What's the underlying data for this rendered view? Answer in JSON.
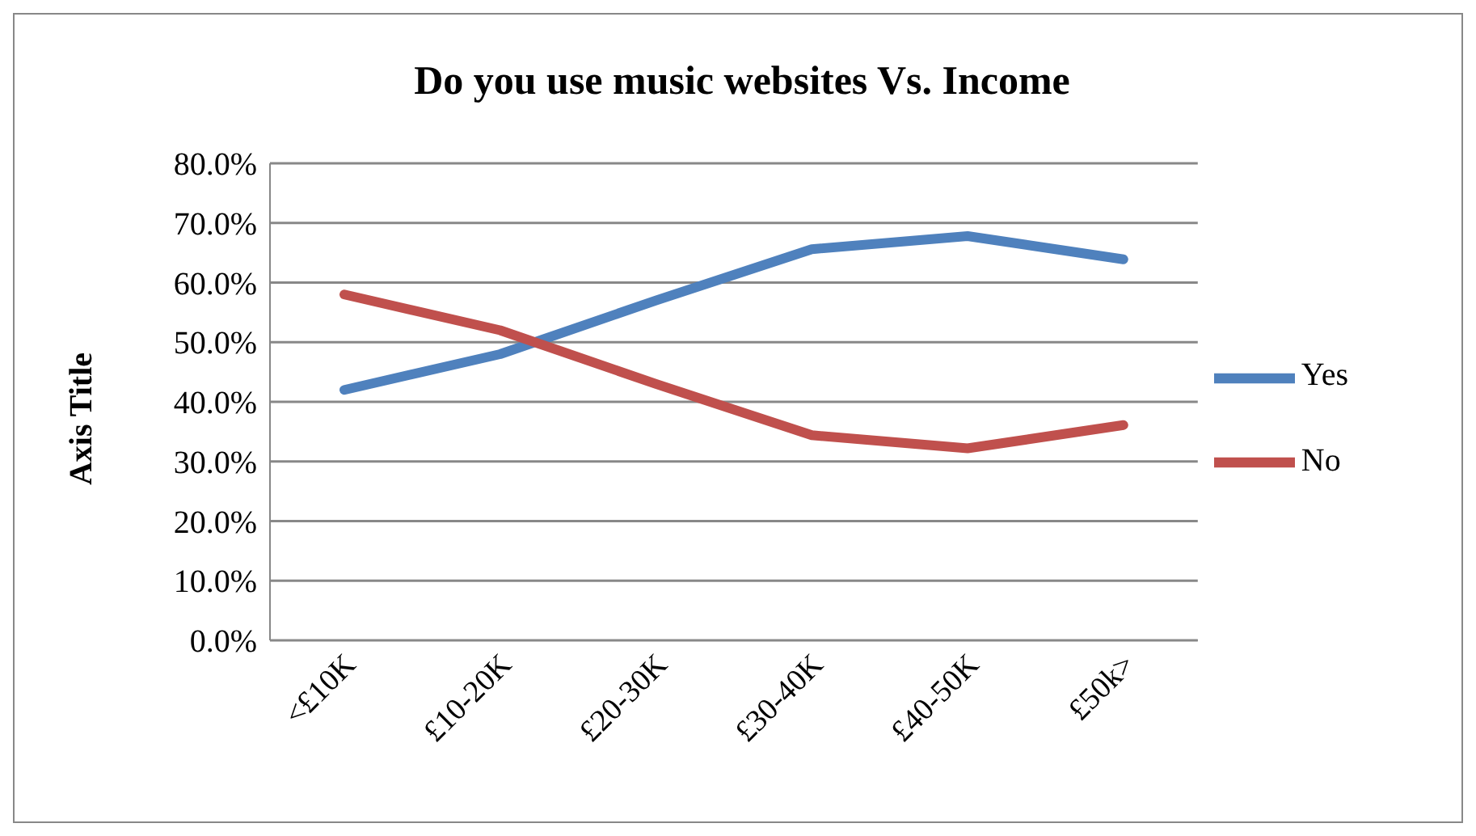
{
  "chart_data": {
    "type": "line",
    "title": "Do you use music websites Vs. Income",
    "ylabel": "Axis Title",
    "categories": [
      "<£10K",
      "£10-20K",
      "£20-30K",
      "£30-40K",
      "£40-50K",
      "£50k>"
    ],
    "series": [
      {
        "name": "Yes",
        "color": "#4f81bd",
        "values": [
          42,
          48,
          57,
          65.6,
          67.8,
          63.9
        ]
      },
      {
        "name": "No",
        "color": "#c0504d",
        "values": [
          58,
          52,
          43,
          34.4,
          32.2,
          36.1
        ]
      }
    ],
    "ylim": [
      0,
      80
    ],
    "yticks": [
      {
        "value": 0,
        "label": "0.0%"
      },
      {
        "value": 10,
        "label": "10.0%"
      },
      {
        "value": 20,
        "label": "20.0%"
      },
      {
        "value": 30,
        "label": "30.0%"
      },
      {
        "value": 40,
        "label": "40.0%"
      },
      {
        "value": 50,
        "label": "50.0%"
      },
      {
        "value": 60,
        "label": "60.0%"
      },
      {
        "value": 70,
        "label": "70.0%"
      },
      {
        "value": 80,
        "label": "80.0%"
      }
    ],
    "grid": "y",
    "legend": "right",
    "marker": "none",
    "line_style": "solid"
  }
}
